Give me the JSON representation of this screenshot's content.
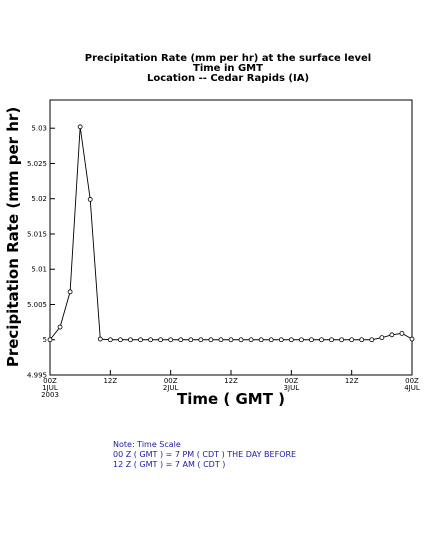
{
  "chart_data": {
    "type": "line",
    "title_lines": [
      "Precipitation Rate (mm per hr) at the surface level",
      "Time in GMT",
      "Location -- Cedar Rapids (IA)"
    ],
    "xlabel": "Time ( GMT )",
    "ylabel": "Precipitation Rate (mm per hr)",
    "ylim": [
      4.995,
      5.034
    ],
    "y_ticks": [
      {
        "value": 4.995,
        "label": "4.995"
      },
      {
        "value": 5.0,
        "label": "5"
      },
      {
        "value": 5.005,
        "label": "5.005"
      },
      {
        "value": 5.01,
        "label": "5.01"
      },
      {
        "value": 5.015,
        "label": "5.015"
      },
      {
        "value": 5.02,
        "label": "5.02"
      },
      {
        "value": 5.025,
        "label": "5.025"
      },
      {
        "value": 5.03,
        "label": "5.03"
      }
    ],
    "x_unit": "hours from 00Z 1JUL 2003",
    "xlim": [
      0,
      72
    ],
    "x_ticks": [
      {
        "value": 0,
        "lines": [
          "00Z",
          "1JUL",
          "2003"
        ]
      },
      {
        "value": 12,
        "lines": [
          "12Z"
        ]
      },
      {
        "value": 24,
        "lines": [
          "00Z",
          "2JUL"
        ]
      },
      {
        "value": 36,
        "lines": [
          "12Z"
        ]
      },
      {
        "value": 48,
        "lines": [
          "00Z",
          "3JUL"
        ]
      },
      {
        "value": 60,
        "lines": [
          "12Z"
        ]
      },
      {
        "value": 72,
        "lines": [
          "00Z",
          "4JUL"
        ]
      }
    ],
    "series": [
      {
        "x": [
          0,
          2,
          4,
          6,
          8,
          10,
          12,
          14,
          16,
          18,
          20,
          22,
          24,
          26,
          28,
          30,
          32,
          34,
          36,
          38,
          40,
          42,
          44,
          46,
          48,
          50,
          52,
          54,
          56,
          58,
          60,
          62,
          64,
          66,
          68,
          70,
          72
        ],
        "values": [
          5.0,
          5.0018,
          5.0068,
          5.0302,
          5.0199,
          5.0001,
          5.0,
          5.0,
          5.0,
          5.0,
          5.0,
          5.0,
          5.0,
          5.0,
          5.0,
          5.0,
          5.0,
          5.0,
          5.0,
          5.0,
          5.0,
          5.0,
          5.0,
          5.0,
          5.0,
          5.0,
          5.0,
          5.0,
          5.0,
          5.0,
          5.0,
          5.0,
          5.0,
          5.0003,
          5.0007,
          5.0009,
          5.0001
        ]
      }
    ],
    "grid": false
  },
  "note": {
    "lines": [
      "Note: Time Scale",
      "00 Z ( GMT ) = 7 PM ( CDT ) THE DAY BEFORE",
      "12 Z ( GMT ) = 7 AM ( CDT )"
    ],
    "color": "#1a1aa6"
  }
}
